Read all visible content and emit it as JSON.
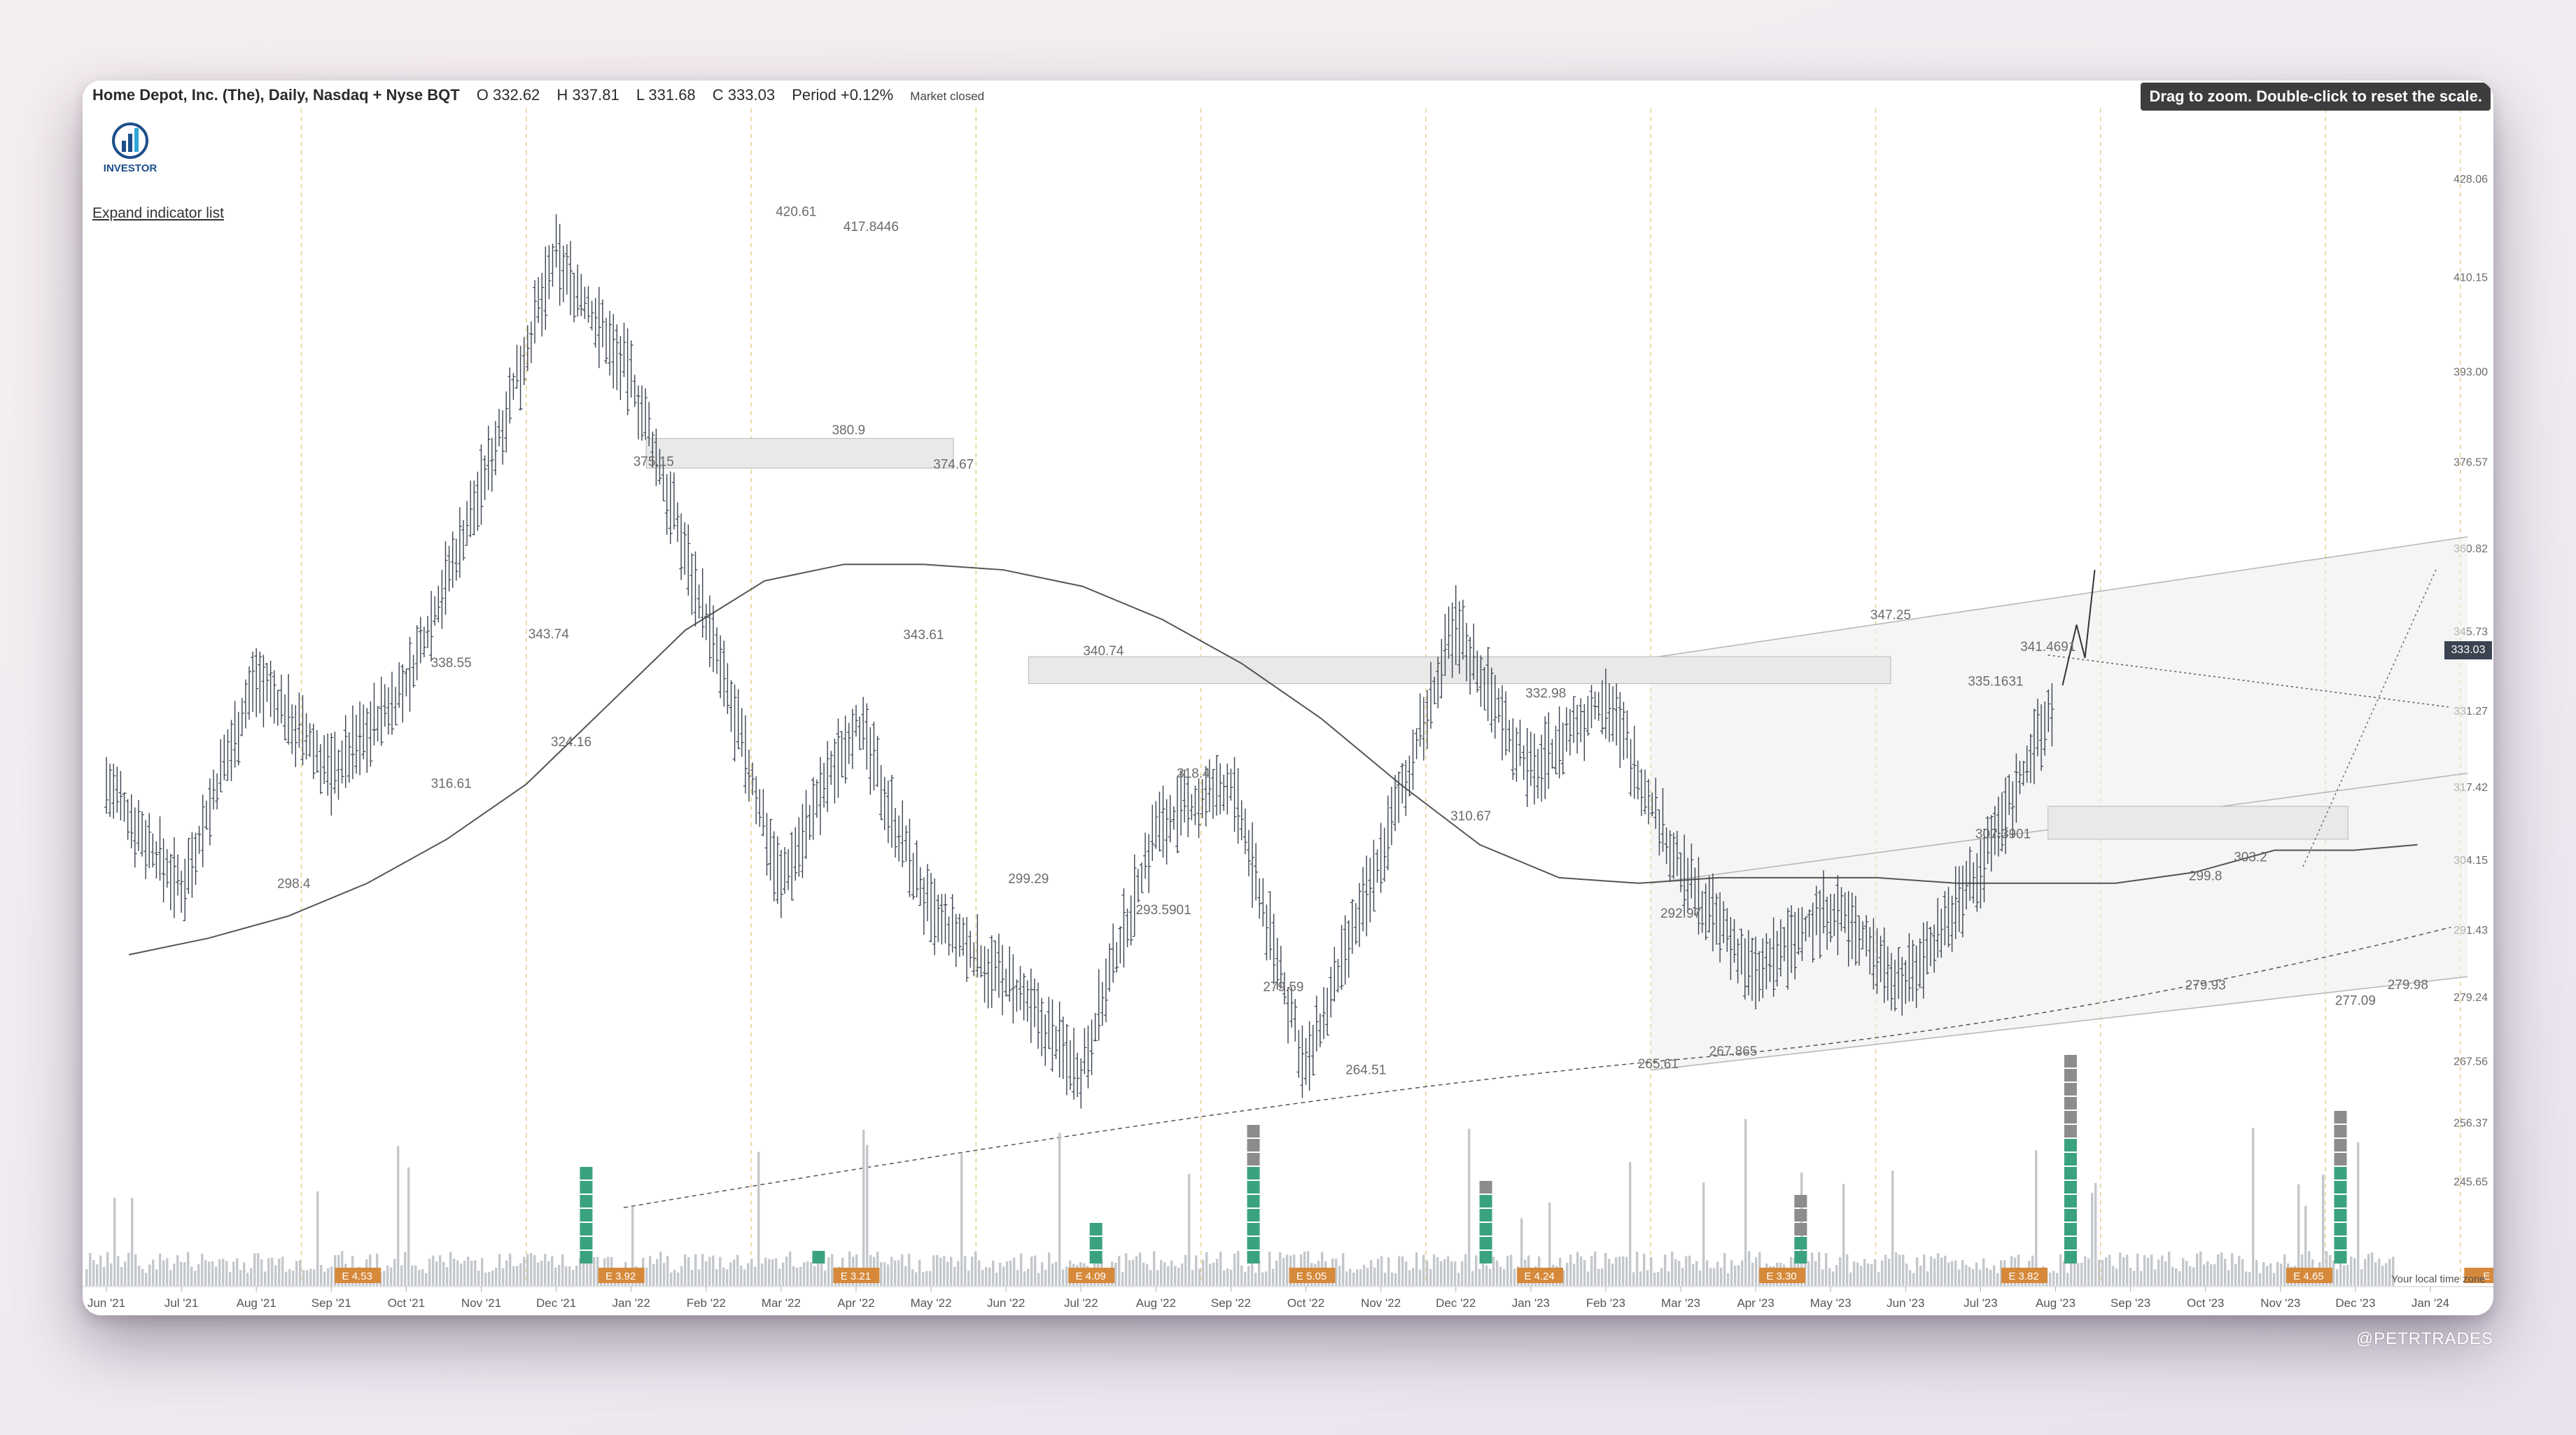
{
  "header": {
    "symbol": "Home Depot, Inc. (The), Daily, Nasdaq + Nyse BQT",
    "open": "O 332.62",
    "high": "H 337.81",
    "low": "L 331.68",
    "close": "C 333.03",
    "period": "Period +0.12%",
    "status": "Market closed"
  },
  "logo": {
    "text": "INVESTOR",
    "icon": "investor-logo-icon"
  },
  "expand_indicator_label": "Expand indicator list",
  "zoom_hint": "Drag to zoom. Double-click to reset the scale.",
  "watermark": "@PETRTRADES",
  "timezone_label": "Your local time zone",
  "current_price_label": "333.03",
  "colors": {
    "bars": "#3a4350",
    "volume": "#c4c8cc",
    "accent_green": "#3aa37e",
    "accent_orange": "#d6893a",
    "accent_gray": "#8c8c8c"
  },
  "chart_data": {
    "type": "line",
    "title": "Home Depot, Inc. (The), Daily, Nasdaq + Nyse BQT",
    "ylim": [
      240,
      432
    ],
    "y_ticks": [
      "428.06",
      "410.15",
      "393.00",
      "376.57",
      "360.82",
      "345.73",
      "331.27",
      "317.42",
      "304.15",
      "291.43",
      "279.24",
      "267.56",
      "256.37",
      "245.65"
    ],
    "x_ticks": [
      "Jun '21",
      "Jul '21",
      "Aug '21",
      "Sep '21",
      "Oct '21",
      "Nov '21",
      "Dec '21",
      "Jan '22",
      "Feb '22",
      "Mar '22",
      "Apr '22",
      "May '22",
      "Jun '22",
      "Jul '22",
      "Aug '22",
      "Sep '22",
      "Oct '22",
      "Nov '22",
      "Dec '22",
      "Jan '23",
      "Feb '23",
      "Mar '23",
      "Apr '23",
      "May '23",
      "Jun '23",
      "Jul '23",
      "Aug '23",
      "Sep '23",
      "Oct '23",
      "Nov '23",
      "Dec '23",
      "Jan '24"
    ],
    "series": [
      {
        "name": "",
        "x": [
          "Jun '21",
          "Jul '21",
          "Aug '21",
          "Sep '21",
          "Oct '21",
          "Nov '21",
          "Dec '21",
          "Jan '22",
          "Feb '22",
          "Mar '22",
          "Apr '22",
          "May '22",
          "Jun '22",
          "Jul '22",
          "Aug '22",
          "Sep '22",
          "Oct '22",
          "Nov '22",
          "Dec '22",
          "Jan '23",
          "Feb '23",
          "Mar '23",
          "Apr '23",
          "May '23",
          "Jun '23",
          "Jul '23",
          "Aug '23"
        ],
        "values": [
          318,
          299,
          338,
          320,
          336,
          372,
          414,
          392,
          348,
          300,
          330,
          294,
          282,
          266,
          310,
          318,
          266,
          305,
          347,
          320,
          334,
          302,
          283,
          296,
          282,
          303,
          333
        ]
      }
    ],
    "annotations": [
      {
        "x": 2.5,
        "y": 298.4,
        "text": "298.4"
      },
      {
        "x": 4.6,
        "y": 316.61,
        "text": "316.61"
      },
      {
        "x": 4.6,
        "y": 338.55,
        "text": "338.55"
      },
      {
        "x": 5.9,
        "y": 343.74,
        "text": "343.74"
      },
      {
        "x": 6.2,
        "y": 324.16,
        "text": "324.16"
      },
      {
        "x": 7.3,
        "y": 375.15,
        "text": "375.15"
      },
      {
        "x": 9.2,
        "y": 420.61,
        "text": "420.61"
      },
      {
        "x": 10.2,
        "y": 417.8446,
        "text": "417.8446"
      },
      {
        "x": 9.9,
        "y": 380.9,
        "text": "380.9"
      },
      {
        "x": 11.3,
        "y": 374.67,
        "text": "374.67"
      },
      {
        "x": 10.9,
        "y": 343.61,
        "text": "343.61"
      },
      {
        "x": 13.3,
        "y": 340.74,
        "text": "340.74"
      },
      {
        "x": 12.3,
        "y": 299.29,
        "text": "299.29"
      },
      {
        "x": 14.5,
        "y": 318.4,
        "text": "318.4"
      },
      {
        "x": 14.1,
        "y": 293.5901,
        "text": "293.5901"
      },
      {
        "x": 15.7,
        "y": 279.59,
        "text": "279.59"
      },
      {
        "x": 16.8,
        "y": 264.51,
        "text": "264.51"
      },
      {
        "x": 18.2,
        "y": 310.67,
        "text": "310.67"
      },
      {
        "x": 19.2,
        "y": 332.98,
        "text": "332.98"
      },
      {
        "x": 20.7,
        "y": 265.61,
        "text": "265.61"
      },
      {
        "x": 21.0,
        "y": 292.97,
        "text": "292.97"
      },
      {
        "x": 21.7,
        "y": 267.865,
        "text": "267.865"
      },
      {
        "x": 23.8,
        "y": 347.25,
        "text": "347.25"
      },
      {
        "x": 25.9,
        "y": 341.4691,
        "text": "341.4691"
      },
      {
        "x": 25.2,
        "y": 335.1631,
        "text": "335.1631"
      },
      {
        "x": 25.3,
        "y": 307.3901,
        "text": "307.3901"
      },
      {
        "x": 28.6,
        "y": 303.2,
        "text": "303.2"
      },
      {
        "x": 28.0,
        "y": 299.8,
        "text": "299.8"
      },
      {
        "x": 28.0,
        "y": 279.93,
        "text": "279.93"
      },
      {
        "x": 30.0,
        "y": 277.09,
        "text": "277.09"
      },
      {
        "x": 30.7,
        "y": 279.98,
        "text": "279.98"
      }
    ],
    "earnings_labels": [
      "E 4.53",
      "E 3.92",
      "E 3.21",
      "E 4.09",
      "E 5.05",
      "E 4.24",
      "E 3.30",
      "E 3.82",
      "E 4.65",
      "E"
    ],
    "grid": false,
    "legend": "none"
  }
}
